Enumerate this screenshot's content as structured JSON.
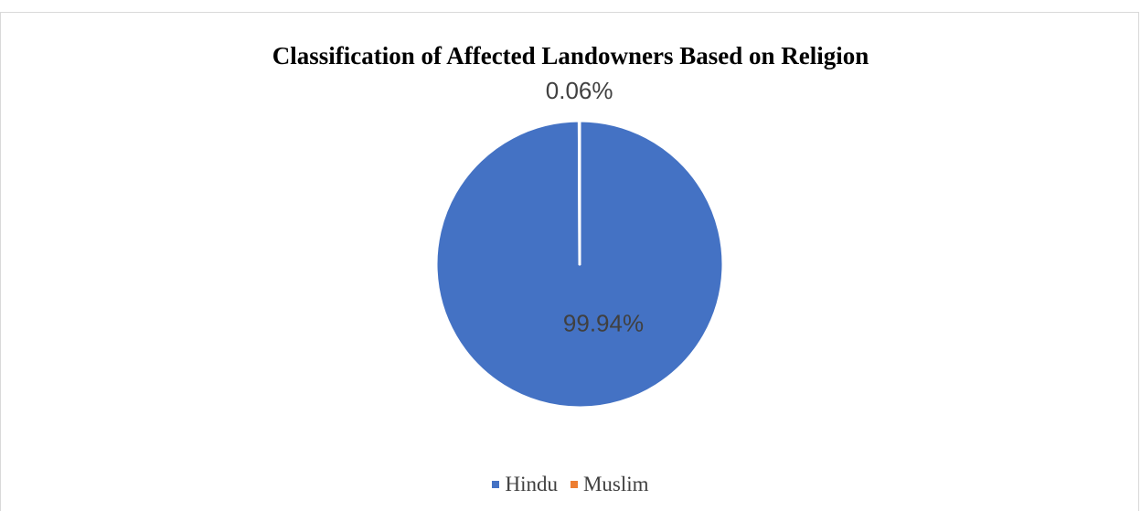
{
  "chart_data": {
    "type": "pie",
    "title": "Classification of Affected Landowners Based on Religion",
    "categories": [
      "Hindu",
      "Muslim"
    ],
    "values": [
      99.94,
      0.06
    ],
    "data_labels": [
      "99.94%",
      "0.06%"
    ],
    "colors": [
      "#4472c4",
      "#ed7d31"
    ],
    "legend_position": "bottom"
  }
}
